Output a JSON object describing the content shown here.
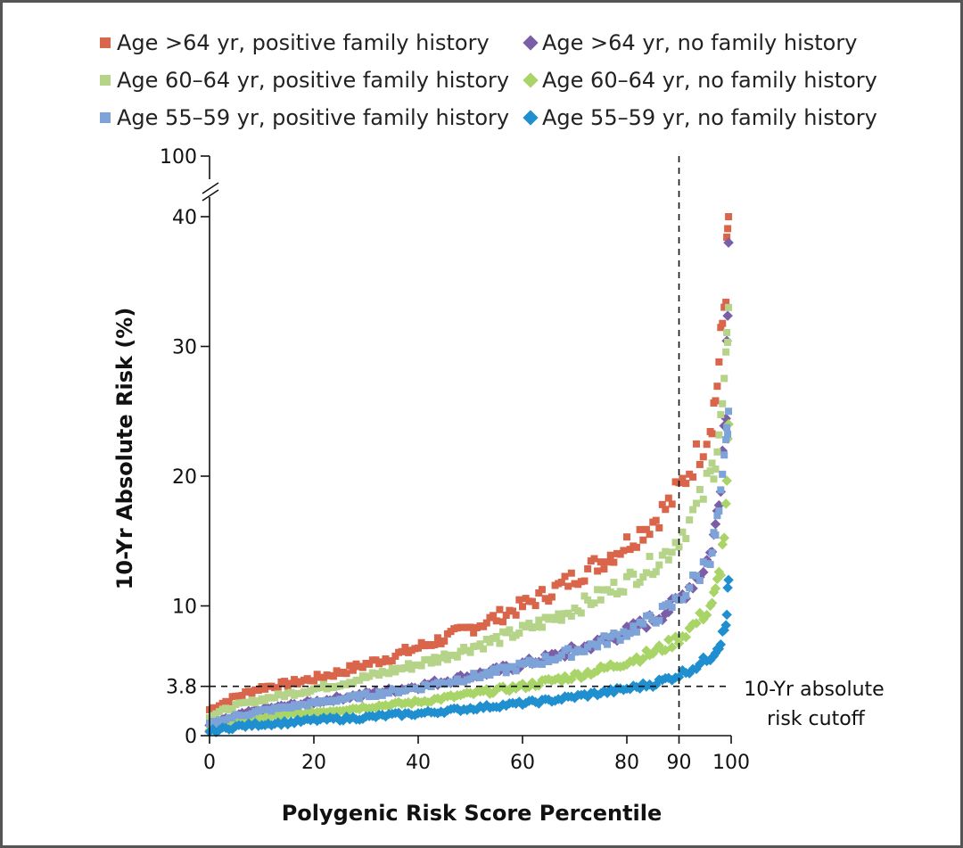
{
  "chart_data": {
    "type": "scatter",
    "xlabel": "Polygenic Risk Score Percentile",
    "ylabel": "10-Yr Absolute Risk (%)",
    "xlim": [
      0,
      100
    ],
    "ylim": [
      0,
      40
    ],
    "axis_break": true,
    "y_break_top_tick": "100",
    "x_ticks": [
      "0",
      "20",
      "40",
      "60",
      "80",
      "90",
      "100"
    ],
    "y_ticks": [
      "0",
      "3.8",
      "10",
      "20",
      "30",
      "40"
    ],
    "grid": false,
    "legend_position": "top",
    "cutoff": {
      "y": 3.8,
      "x": 90,
      "label_line1": "10-Yr absolute",
      "label_line2": "risk cutoff"
    },
    "series": [
      {
        "name": "Age >64 yr, positive family history",
        "marker": "square",
        "color": "#d9654b",
        "x": [
          0,
          5,
          10,
          15,
          20,
          25,
          30,
          35,
          40,
          45,
          50,
          55,
          60,
          65,
          70,
          75,
          80,
          85,
          88,
          90,
          92,
          94,
          96,
          97,
          98,
          99,
          99.5
        ],
        "y": [
          2.0,
          3.0,
          3.7,
          4.0,
          4.4,
          4.9,
          5.5,
          6.1,
          6.8,
          7.5,
          8.3,
          9.1,
          10.0,
          11.0,
          12.2,
          13.4,
          14.8,
          16.5,
          17.8,
          19.0,
          20.5,
          22.0,
          24.0,
          26.0,
          30.0,
          35.0,
          40.0
        ]
      },
      {
        "name": "Age >64 yr, no family history",
        "marker": "diamond",
        "color": "#7b5ea7",
        "x": [
          0,
          5,
          10,
          15,
          20,
          25,
          30,
          35,
          40,
          45,
          50,
          55,
          60,
          65,
          70,
          75,
          80,
          85,
          88,
          90,
          92,
          94,
          96,
          97,
          98,
          99,
          99.5
        ],
        "y": [
          0.8,
          1.5,
          2.0,
          2.3,
          2.6,
          2.9,
          3.2,
          3.5,
          3.8,
          4.2,
          4.6,
          5.0,
          5.5,
          6.0,
          6.6,
          7.2,
          8.0,
          9.0,
          9.7,
          10.5,
          11.5,
          12.5,
          14.0,
          16.0,
          20.0,
          26.0,
          38.0
        ]
      },
      {
        "name": "Age 60–64 yr, positive family history",
        "marker": "square",
        "color": "#b5d48a",
        "x": [
          0,
          5,
          10,
          15,
          20,
          25,
          30,
          35,
          40,
          45,
          50,
          55,
          60,
          65,
          70,
          75,
          80,
          85,
          88,
          90,
          92,
          94,
          96,
          97,
          98,
          99,
          99.5
        ],
        "y": [
          1.5,
          2.3,
          2.8,
          3.2,
          3.6,
          4.0,
          4.5,
          5.0,
          5.5,
          6.1,
          6.8,
          7.4,
          8.1,
          8.9,
          9.8,
          10.8,
          11.9,
          13.2,
          14.2,
          15.3,
          16.5,
          18.0,
          20.0,
          21.5,
          24.0,
          28.0,
          33.0
        ]
      },
      {
        "name": "Age 60–64 yr, no family history",
        "marker": "diamond",
        "color": "#a8d468",
        "x": [
          0,
          5,
          10,
          15,
          20,
          25,
          30,
          35,
          40,
          45,
          50,
          55,
          60,
          65,
          70,
          75,
          80,
          85,
          88,
          90,
          92,
          94,
          96,
          97,
          98,
          99,
          99.5
        ],
        "y": [
          0.5,
          1.0,
          1.4,
          1.6,
          1.8,
          2.0,
          2.2,
          2.4,
          2.6,
          2.9,
          3.2,
          3.5,
          3.8,
          4.2,
          4.6,
          5.1,
          5.7,
          6.4,
          7.0,
          7.5,
          8.2,
          9.0,
          10.0,
          11.0,
          13.0,
          17.0,
          24.0
        ]
      },
      {
        "name": "Age 55–59 yr, positive family history",
        "marker": "square",
        "color": "#7ea3d8",
        "x": [
          0,
          5,
          10,
          15,
          20,
          25,
          30,
          35,
          40,
          45,
          50,
          55,
          60,
          65,
          70,
          75,
          80,
          85,
          88,
          90,
          92,
          94,
          96,
          97,
          98,
          99,
          99.5
        ],
        "y": [
          0.9,
          1.5,
          1.9,
          2.2,
          2.5,
          2.8,
          3.1,
          3.4,
          3.7,
          4.1,
          4.5,
          4.9,
          5.4,
          5.9,
          6.5,
          7.2,
          8.0,
          9.0,
          9.8,
          10.5,
          11.5,
          12.5,
          14.0,
          15.5,
          18.0,
          22.0,
          25.0
        ]
      },
      {
        "name": "Age 55–59 yr, no family history",
        "marker": "diamond",
        "color": "#1f8fcf",
        "x": [
          0,
          5,
          10,
          15,
          20,
          25,
          30,
          35,
          40,
          45,
          50,
          55,
          60,
          65,
          70,
          75,
          80,
          85,
          88,
          90,
          92,
          94,
          96,
          97,
          98,
          99,
          99.5
        ],
        "y": [
          0.3,
          0.7,
          0.9,
          1.0,
          1.2,
          1.3,
          1.4,
          1.6,
          1.7,
          1.9,
          2.1,
          2.3,
          2.5,
          2.7,
          3.0,
          3.3,
          3.6,
          4.0,
          4.4,
          4.7,
          5.1,
          5.5,
          6.1,
          6.6,
          7.3,
          8.5,
          12.0
        ]
      }
    ]
  }
}
